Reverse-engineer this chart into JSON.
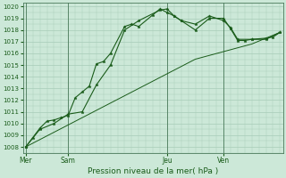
{
  "xlabel": "Pression niveau de la mer( hPa )",
  "ylim": [
    1007.5,
    1020.3
  ],
  "yticks": [
    1008,
    1009,
    1010,
    1011,
    1012,
    1013,
    1014,
    1015,
    1016,
    1017,
    1018,
    1019,
    1020
  ],
  "bg_color": "#cce8d8",
  "grid_color": "#a8ccb8",
  "line_color": "#1a5c1a",
  "vline_color": "#4a7a5a",
  "day_labels": [
    "Mer",
    "Sam",
    "Jeu",
    "Ven"
  ],
  "day_positions": [
    0,
    3,
    10,
    14
  ],
  "xlim": [
    -0.2,
    18.2
  ],
  "series1": [
    [
      0,
      1008.0
    ],
    [
      0.5,
      1008.8
    ],
    [
      1,
      1009.6
    ],
    [
      1.5,
      1010.2
    ],
    [
      2,
      1010.3
    ],
    [
      2.5,
      1010.5
    ],
    [
      3,
      1010.7
    ],
    [
      3.5,
      1012.2
    ],
    [
      4,
      1012.7
    ],
    [
      4.5,
      1013.2
    ],
    [
      5,
      1015.1
    ],
    [
      5.5,
      1015.3
    ],
    [
      6,
      1016.0
    ],
    [
      7,
      1018.3
    ],
    [
      7.5,
      1018.5
    ],
    [
      8,
      1018.3
    ],
    [
      9,
      1019.3
    ],
    [
      9.5,
      1019.8
    ],
    [
      10,
      1019.5
    ],
    [
      10.5,
      1019.2
    ],
    [
      11,
      1018.8
    ],
    [
      12,
      1018.0
    ],
    [
      13,
      1019.0
    ],
    [
      14,
      1019.0
    ],
    [
      14.5,
      1018.1
    ],
    [
      15,
      1017.1
    ],
    [
      15.5,
      1017.1
    ],
    [
      16,
      1017.2
    ],
    [
      17,
      1017.3
    ],
    [
      17.5,
      1017.4
    ],
    [
      18,
      1017.8
    ]
  ],
  "series2": [
    [
      0,
      1008.0
    ],
    [
      1,
      1009.5
    ],
    [
      2,
      1010.0
    ],
    [
      3,
      1010.8
    ],
    [
      4,
      1011.0
    ],
    [
      5,
      1013.3
    ],
    [
      6,
      1015.0
    ],
    [
      7,
      1018.0
    ],
    [
      8,
      1018.8
    ],
    [
      9.5,
      1019.7
    ],
    [
      10,
      1019.8
    ],
    [
      10.5,
      1019.2
    ],
    [
      11,
      1018.8
    ],
    [
      12,
      1018.5
    ],
    [
      13,
      1019.2
    ],
    [
      14,
      1018.8
    ],
    [
      14.5,
      1018.2
    ],
    [
      15,
      1017.2
    ],
    [
      16,
      1017.2
    ],
    [
      17,
      1017.2
    ],
    [
      18,
      1017.8
    ]
  ],
  "series3": [
    [
      0,
      1008.0
    ],
    [
      4,
      1010.5
    ],
    [
      8,
      1013.0
    ],
    [
      12,
      1015.5
    ],
    [
      16,
      1016.8
    ],
    [
      18,
      1017.8
    ]
  ]
}
